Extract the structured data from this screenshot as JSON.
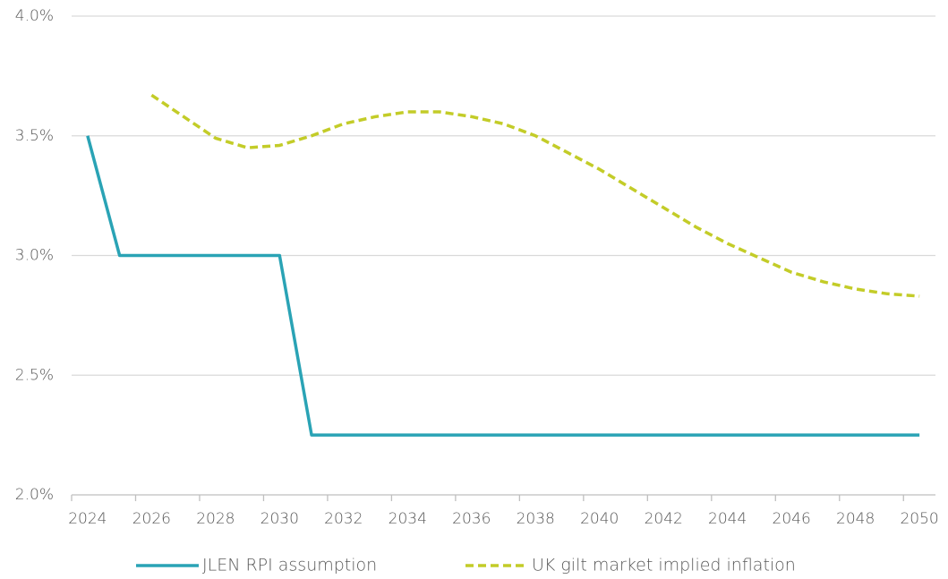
{
  "chart_data": {
    "type": "line",
    "x": [
      2024,
      2025,
      2026,
      2027,
      2028,
      2029,
      2030,
      2031,
      2032,
      2033,
      2034,
      2035,
      2036,
      2037,
      2038,
      2039,
      2040,
      2041,
      2042,
      2043,
      2044,
      2045,
      2046,
      2047,
      2048,
      2049,
      2050
    ],
    "series": [
      {
        "name": "JLEN RPI assumption",
        "color": "#2aa3b5",
        "dash": false,
        "values": [
          3.5,
          3.0,
          3.0,
          3.0,
          3.0,
          3.0,
          3.0,
          2.25,
          2.25,
          2.25,
          2.25,
          2.25,
          2.25,
          2.25,
          2.25,
          2.25,
          2.25,
          2.25,
          2.25,
          2.25,
          2.25,
          2.25,
          2.25,
          2.25,
          2.25,
          2.25,
          2.25
        ]
      },
      {
        "name": "UK gilt market implied inflation",
        "color": "#c3cc28",
        "dash": true,
        "values": [
          null,
          null,
          3.67,
          3.58,
          3.49,
          3.45,
          3.46,
          3.5,
          3.55,
          3.58,
          3.6,
          3.6,
          3.58,
          3.55,
          3.5,
          3.43,
          3.36,
          3.28,
          3.2,
          3.12,
          3.05,
          2.99,
          2.93,
          2.89,
          2.86,
          2.84,
          2.83
        ]
      }
    ],
    "xlim": [
      2023.5,
      2050.5
    ],
    "xticks": [
      2024,
      2026,
      2028,
      2030,
      2032,
      2034,
      2036,
      2038,
      2040,
      2042,
      2044,
      2046,
      2048,
      2050
    ],
    "ylim": [
      2.0,
      4.0
    ],
    "yticks": [
      {
        "value": 2.0,
        "label": "2.0%"
      },
      {
        "value": 2.5,
        "label": "2.5%"
      },
      {
        "value": 3.0,
        "label": "3.0%"
      },
      {
        "value": 3.5,
        "label": "3.5%"
      },
      {
        "value": 4.0,
        "label": "4.0%"
      }
    ],
    "grid": true,
    "legend": "bottom"
  }
}
